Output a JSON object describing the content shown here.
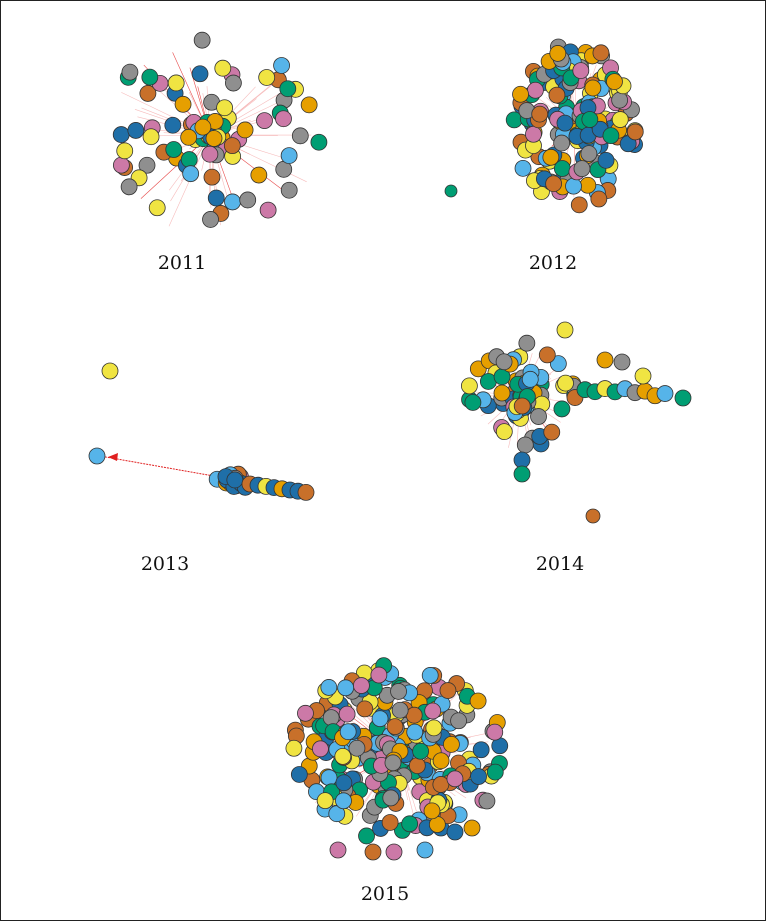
{
  "panels": [
    {
      "label": "2011"
    },
    {
      "label": "2012"
    },
    {
      "label": "2013"
    },
    {
      "label": "2014"
    },
    {
      "label": "2015"
    }
  ]
}
